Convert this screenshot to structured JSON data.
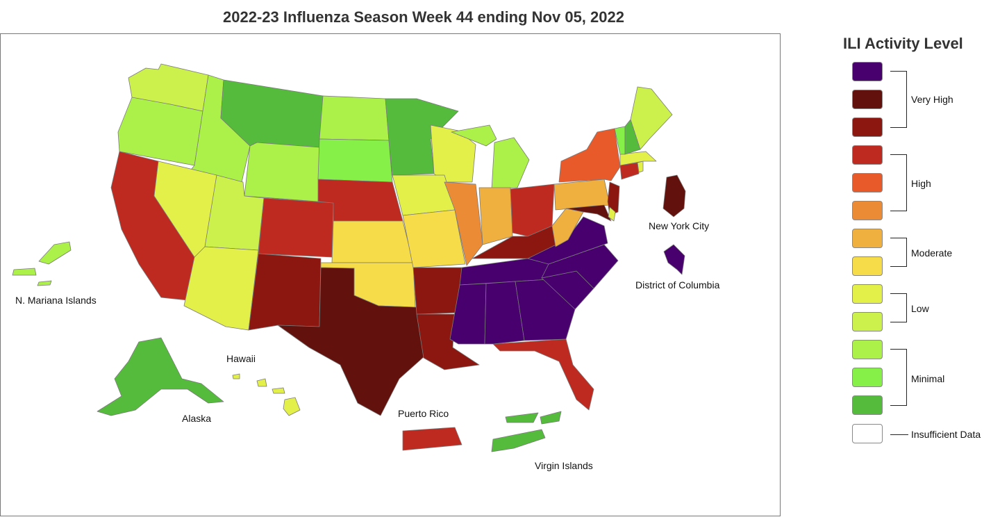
{
  "title": "2022-23 Influenza Season Week 44 ending Nov 05, 2022",
  "legend": {
    "title": "ILI Activity Level",
    "swatches": [
      "#47006e",
      "#62110c",
      "#8b1710",
      "#bf2a20",
      "#e85a2a",
      "#ec8b35",
      "#f0b03f",
      "#f5dc48",
      "#e3f04a",
      "#ccf04c",
      "#acf04a",
      "#86f049",
      "#55bb3c",
      "#ffffff"
    ],
    "groups": [
      {
        "label": "Very High"
      },
      {
        "label": "High"
      },
      {
        "label": "Moderate"
      },
      {
        "label": "Low"
      },
      {
        "label": "Minimal"
      },
      {
        "label": "Insufficient Data"
      }
    ]
  },
  "map_labels": {
    "nyc": "New York City",
    "dc": "District of Columbia",
    "nmi": "N. Mariana Islands",
    "hawaii": "Hawaii",
    "alaska": "Alaska",
    "puerto_rico": "Puerto Rico",
    "virgin_islands": "Virgin Islands"
  },
  "map_data": {
    "levels": {
      "Washington": 10,
      "Oregon": 11,
      "Idaho": 11,
      "Montana": 13,
      "Wyoming": 11,
      "North Dakota": 11,
      "South Dakota": 12,
      "Minnesota": 13,
      "Wisconsin": 9,
      "Michigan": 11,
      "California": 4,
      "Nevada": 9,
      "Utah": 10,
      "Arizona": 9,
      "Colorado": 4,
      "New Mexico": 3,
      "Nebraska": 4,
      "Kansas": 8,
      "Oklahoma": 8,
      "Texas": 2,
      "Iowa": 9,
      "Missouri": 8,
      "Arkansas": 3,
      "Louisiana": 3,
      "Illinois": 6,
      "Indiana": 7,
      "Ohio": 4,
      "Kentucky": 3,
      "Tennessee": 1,
      "Mississippi": 1,
      "Alabama": 1,
      "Georgia": 1,
      "South Carolina": 1,
      "North Carolina": 1,
      "Virginia": 1,
      "West Virginia": 7,
      "Florida": 4,
      "Pennsylvania": 7,
      "New York": 5,
      "New Jersey": 3,
      "Maryland": 2,
      "Delaware": 9,
      "Connecticut": 4,
      "Rhode Island": 9,
      "Massachusetts": 9,
      "Vermont": 12,
      "New Hampshire": 13,
      "Maine": 10,
      "Alaska": 13,
      "Hawaii": 9,
      "N. Mariana Islands": 11,
      "Puerto Rico": 4,
      "Virgin Islands": 13,
      "New York City": 2,
      "District of Columbia": 1
    }
  }
}
